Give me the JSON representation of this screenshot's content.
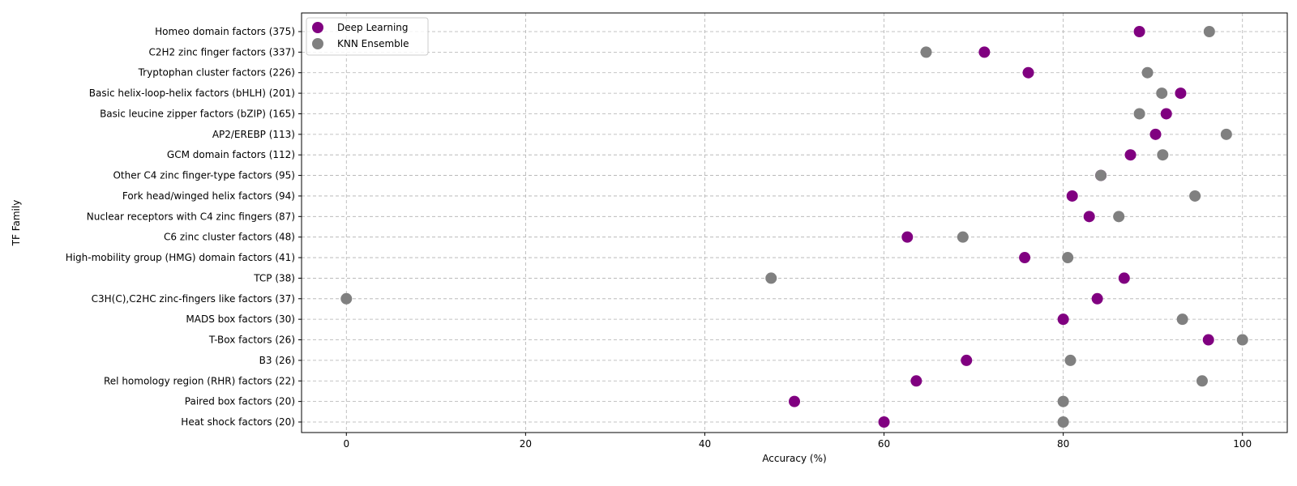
{
  "chart_data": {
    "type": "scatter",
    "xlabel": "Accuracy (%)",
    "ylabel": "TF Family",
    "xlim": [
      -5,
      105
    ],
    "xticks": [
      0,
      20,
      40,
      60,
      80,
      100
    ],
    "grid": true,
    "legend_position": "top-left",
    "categories": [
      "Homeo domain factors (375)",
      "C2H2 zinc finger factors (337)",
      "Tryptophan cluster factors (226)",
      "Basic helix-loop-helix factors (bHLH) (201)",
      "Basic leucine zipper factors (bZIP) (165)",
      "AP2/EREBP (113)",
      "GCM domain factors (112)",
      "Other C4 zinc finger-type factors (95)",
      "Fork head/winged helix factors (94)",
      "Nuclear receptors with C4 zinc fingers (87)",
      "C6 zinc cluster factors (48)",
      "High-mobility group (HMG) domain factors (41)",
      "TCP (38)",
      "C3H(C),C2HC zinc-fingers like factors (37)",
      "MADS box factors (30)",
      "T-Box factors (26)",
      "B3 (26)",
      "Rel homology region (RHR) factors (22)",
      "Paired box factors (20)",
      "Heat shock factors (20)"
    ],
    "series": [
      {
        "name": "Deep Learning",
        "color": "#800080",
        "values": [
          88.5,
          71.2,
          76.1,
          93.1,
          91.5,
          90.3,
          87.5,
          84.2,
          81.0,
          82.9,
          62.6,
          75.7,
          86.8,
          83.8,
          80.0,
          96.2,
          69.2,
          63.6,
          50.0,
          60.0
        ]
      },
      {
        "name": "KNN Ensemble",
        "color": "#808080",
        "values": [
          96.3,
          64.7,
          89.4,
          91.0,
          88.5,
          98.2,
          91.1,
          84.2,
          94.7,
          86.2,
          68.8,
          80.5,
          47.4,
          0.0,
          93.3,
          100.0,
          80.8,
          95.5,
          80.0,
          80.0
        ]
      }
    ]
  }
}
